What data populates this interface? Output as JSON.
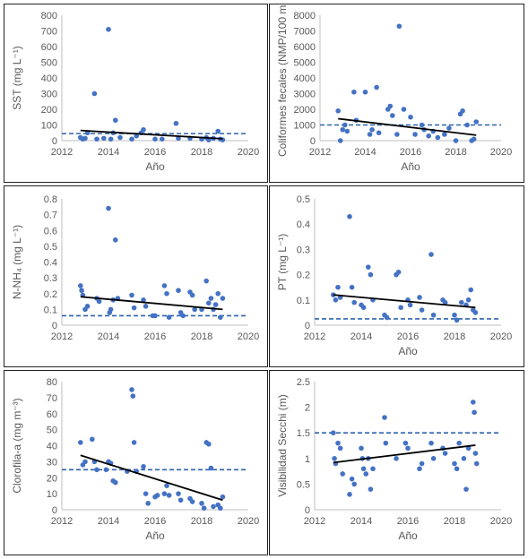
{
  "chart_data": [
    {
      "type": "scatter",
      "title": "",
      "xlabel": "Año",
      "ylabel": "SST (mg L⁻¹)",
      "xlim": [
        2012,
        2020
      ],
      "ylim": [
        0,
        800
      ],
      "xticks": [
        2012,
        2014,
        2016,
        2018,
        2020
      ],
      "yticks": [
        0,
        100,
        200,
        300,
        400,
        500,
        600,
        700,
        800
      ],
      "grid": false,
      "reference_line": 45,
      "trend_line": {
        "x": [
          2012.8,
          2018.9
        ],
        "y": [
          65,
          12
        ]
      },
      "points": [
        [
          2012.8,
          20
        ],
        [
          2012.9,
          10
        ],
        [
          2013.0,
          15
        ],
        [
          2013.1,
          50
        ],
        [
          2013.4,
          300
        ],
        [
          2013.5,
          10
        ],
        [
          2013.8,
          15
        ],
        [
          2014.0,
          710
        ],
        [
          2014.1,
          10
        ],
        [
          2014.2,
          50
        ],
        [
          2014.3,
          130
        ],
        [
          2014.5,
          20
        ],
        [
          2015.0,
          10
        ],
        [
          2015.2,
          30
        ],
        [
          2015.4,
          50
        ],
        [
          2015.5,
          70
        ],
        [
          2016.0,
          10
        ],
        [
          2016.3,
          10
        ],
        [
          2016.9,
          110
        ],
        [
          2017.0,
          15
        ],
        [
          2017.5,
          15
        ],
        [
          2018.0,
          10
        ],
        [
          2018.2,
          20
        ],
        [
          2018.3,
          5
        ],
        [
          2018.5,
          15
        ],
        [
          2018.7,
          60
        ],
        [
          2018.8,
          10
        ],
        [
          2018.9,
          5
        ]
      ]
    },
    {
      "type": "scatter",
      "title": "",
      "xlabel": "Año",
      "ylabel": "Coliformes fecales (NMP/100 ml)",
      "xlim": [
        2012,
        2020
      ],
      "ylim": [
        0,
        8000
      ],
      "xticks": [
        2012,
        2014,
        2016,
        2018,
        2020
      ],
      "yticks": [
        0,
        1000,
        2000,
        3000,
        4000,
        5000,
        6000,
        7000,
        8000
      ],
      "grid": false,
      "reference_line": 1000,
      "trend_line": {
        "x": [
          2012.8,
          2018.9
        ],
        "y": [
          1400,
          350
        ]
      },
      "points": [
        [
          2012.8,
          1900
        ],
        [
          2012.9,
          0
        ],
        [
          2013.0,
          700
        ],
        [
          2013.1,
          1000
        ],
        [
          2013.2,
          600
        ],
        [
          2013.5,
          3100
        ],
        [
          2013.6,
          1300
        ],
        [
          2014.0,
          3100
        ],
        [
          2014.2,
          400
        ],
        [
          2014.3,
          700
        ],
        [
          2014.5,
          3400
        ],
        [
          2014.6,
          500
        ],
        [
          2015.0,
          2000
        ],
        [
          2015.1,
          2200
        ],
        [
          2015.2,
          1600
        ],
        [
          2015.4,
          400
        ],
        [
          2015.5,
          7300
        ],
        [
          2015.7,
          2000
        ],
        [
          2016.0,
          1500
        ],
        [
          2016.2,
          400
        ],
        [
          2016.5,
          1000
        ],
        [
          2016.6,
          700
        ],
        [
          2016.8,
          300
        ],
        [
          2017.0,
          600
        ],
        [
          2017.2,
          200
        ],
        [
          2017.5,
          400
        ],
        [
          2017.7,
          800
        ],
        [
          2018.0,
          0
        ],
        [
          2018.2,
          1700
        ],
        [
          2018.3,
          1900
        ],
        [
          2018.5,
          1000
        ],
        [
          2018.7,
          0
        ],
        [
          2018.8,
          100
        ],
        [
          2018.9,
          1200
        ]
      ]
    },
    {
      "type": "scatter",
      "title": "",
      "xlabel": "",
      "ylabel": "N-NH₄ (mg L⁻¹)",
      "xlim": [
        2012,
        2020
      ],
      "ylim": [
        0,
        0.8
      ],
      "xticks": [
        2012,
        2014,
        2016,
        2018,
        2020
      ],
      "yticks": [
        0,
        0.1,
        0.2,
        0.3,
        0.4,
        0.5,
        0.6,
        0.7,
        0.8
      ],
      "grid": false,
      "reference_line": 0.06,
      "trend_line": {
        "x": [
          2012.8,
          2018.9
        ],
        "y": [
          0.18,
          0.1
        ]
      },
      "points": [
        [
          2012.8,
          0.25
        ],
        [
          2012.85,
          0.22
        ],
        [
          2012.9,
          0.19
        ],
        [
          2013.0,
          0.1
        ],
        [
          2013.1,
          0.12
        ],
        [
          2013.5,
          0.17
        ],
        [
          2013.6,
          0.15
        ],
        [
          2014.0,
          0.74
        ],
        [
          2014.05,
          0.08
        ],
        [
          2014.1,
          0.1
        ],
        [
          2014.2,
          0.16
        ],
        [
          2014.3,
          0.54
        ],
        [
          2014.4,
          0.17
        ],
        [
          2015.0,
          0.19
        ],
        [
          2015.1,
          0.11
        ],
        [
          2015.5,
          0.16
        ],
        [
          2015.6,
          0.12
        ],
        [
          2015.9,
          0.06
        ],
        [
          2016.0,
          0.06
        ],
        [
          2016.4,
          0.25
        ],
        [
          2016.5,
          0.2
        ],
        [
          2016.6,
          0.05
        ],
        [
          2017.0,
          0.22
        ],
        [
          2017.1,
          0.08
        ],
        [
          2017.2,
          0.06
        ],
        [
          2017.5,
          0.21
        ],
        [
          2017.6,
          0.19
        ],
        [
          2017.7,
          0.1
        ],
        [
          2018.0,
          0.1
        ],
        [
          2018.2,
          0.28
        ],
        [
          2018.3,
          0.14
        ],
        [
          2018.4,
          0.17
        ],
        [
          2018.5,
          0.1
        ],
        [
          2018.6,
          0.13
        ],
        [
          2018.7,
          0.2
        ],
        [
          2018.8,
          0.05
        ],
        [
          2018.9,
          0.17
        ]
      ]
    },
    {
      "type": "scatter",
      "title": "",
      "xlabel": "Año",
      "ylabel": "PT (mg L⁻¹)",
      "xlim": [
        2012,
        2020
      ],
      "ylim": [
        0,
        0.5
      ],
      "xticks": [
        2012,
        2014,
        2016,
        2018,
        2020
      ],
      "yticks": [
        0,
        0.1,
        0.2,
        0.3,
        0.4,
        0.5
      ],
      "grid": false,
      "reference_line": 0.025,
      "trend_line": {
        "x": [
          2012.8,
          2018.9
        ],
        "y": [
          0.12,
          0.07
        ]
      },
      "points": [
        [
          2012.8,
          0.12
        ],
        [
          2012.9,
          0.1
        ],
        [
          2013.0,
          0.15
        ],
        [
          2013.1,
          0.11
        ],
        [
          2013.5,
          0.43
        ],
        [
          2013.6,
          0.15
        ],
        [
          2013.7,
          0.09
        ],
        [
          2014.0,
          0.08
        ],
        [
          2014.1,
          0.07
        ],
        [
          2014.3,
          0.23
        ],
        [
          2014.4,
          0.2
        ],
        [
          2014.5,
          0.1
        ],
        [
          2015.0,
          0.04
        ],
        [
          2015.1,
          0.03
        ],
        [
          2015.5,
          0.2
        ],
        [
          2015.6,
          0.21
        ],
        [
          2015.7,
          0.07
        ],
        [
          2016.0,
          0.1
        ],
        [
          2016.1,
          0.08
        ],
        [
          2016.5,
          0.11
        ],
        [
          2016.6,
          0.06
        ],
        [
          2017.0,
          0.28
        ],
        [
          2017.1,
          0.04
        ],
        [
          2017.5,
          0.1
        ],
        [
          2017.6,
          0.09
        ],
        [
          2018.0,
          0.04
        ],
        [
          2018.1,
          0.02
        ],
        [
          2018.3,
          0.09
        ],
        [
          2018.5,
          0.08
        ],
        [
          2018.6,
          0.1
        ],
        [
          2018.7,
          0.14
        ],
        [
          2018.8,
          0.06
        ],
        [
          2018.9,
          0.05
        ]
      ]
    },
    {
      "type": "scatter",
      "title": "",
      "xlabel": "Año",
      "ylabel": "Clorofila-a (mg m⁻³)",
      "xlim": [
        2012,
        2020
      ],
      "ylim": [
        0,
        80
      ],
      "xticks": [
        2012,
        2014,
        2016,
        2018,
        2020
      ],
      "yticks": [
        0,
        10,
        20,
        30,
        40,
        50,
        60,
        70,
        80
      ],
      "grid": false,
      "reference_line": 25,
      "trend_line": {
        "x": [
          2012.8,
          2018.9
        ],
        "y": [
          34,
          6
        ]
      },
      "points": [
        [
          2012.8,
          42
        ],
        [
          2012.9,
          28
        ],
        [
          2013.0,
          30
        ],
        [
          2013.3,
          44
        ],
        [
          2013.4,
          30
        ],
        [
          2013.5,
          25
        ],
        [
          2013.9,
          25
        ],
        [
          2014.0,
          30
        ],
        [
          2014.1,
          29
        ],
        [
          2014.2,
          18
        ],
        [
          2014.3,
          17
        ],
        [
          2014.8,
          24
        ],
        [
          2015.0,
          75
        ],
        [
          2015.05,
          71
        ],
        [
          2015.1,
          42
        ],
        [
          2015.2,
          24
        ],
        [
          2015.5,
          27
        ],
        [
          2015.6,
          10
        ],
        [
          2015.7,
          4
        ],
        [
          2016.0,
          8
        ],
        [
          2016.1,
          9
        ],
        [
          2016.4,
          10
        ],
        [
          2016.5,
          15
        ],
        [
          2016.6,
          9
        ],
        [
          2017.0,
          10
        ],
        [
          2017.1,
          6
        ],
        [
          2017.5,
          7
        ],
        [
          2017.6,
          5
        ],
        [
          2018.0,
          4
        ],
        [
          2018.1,
          1
        ],
        [
          2018.2,
          42
        ],
        [
          2018.3,
          41
        ],
        [
          2018.4,
          26
        ],
        [
          2018.5,
          2
        ],
        [
          2018.7,
          3
        ],
        [
          2018.8,
          1
        ],
        [
          2018.9,
          8
        ]
      ]
    },
    {
      "type": "scatter",
      "title": "",
      "xlabel": "Año",
      "ylabel": "Visibilidad Secchi (m)",
      "xlim": [
        2012,
        2020
      ],
      "ylim": [
        0,
        2.5
      ],
      "xticks": [
        2012,
        2014,
        2016,
        2018,
        2020
      ],
      "yticks": [
        0,
        0.5,
        1,
        1.5,
        2,
        2.5
      ],
      "grid": false,
      "reference_line": 1.5,
      "trend_line": {
        "x": [
          2012.8,
          2018.9
        ],
        "y": [
          0.92,
          1.26
        ]
      },
      "points": [
        [
          2012.8,
          1.5
        ],
        [
          2012.85,
          1.0
        ],
        [
          2012.9,
          0.9
        ],
        [
          2013.0,
          1.3
        ],
        [
          2013.1,
          1.2
        ],
        [
          2013.2,
          0.7
        ],
        [
          2013.5,
          0.3
        ],
        [
          2013.6,
          0.6
        ],
        [
          2013.7,
          0.5
        ],
        [
          2014.0,
          1.2
        ],
        [
          2014.05,
          1.0
        ],
        [
          2014.1,
          0.8
        ],
        [
          2014.2,
          0.7
        ],
        [
          2014.3,
          1.0
        ],
        [
          2014.4,
          0.4
        ],
        [
          2014.5,
          0.8
        ],
        [
          2015.0,
          1.8
        ],
        [
          2015.05,
          1.3
        ],
        [
          2015.5,
          1.0
        ],
        [
          2015.9,
          1.3
        ],
        [
          2016.0,
          1.2
        ],
        [
          2016.5,
          0.8
        ],
        [
          2016.6,
          0.9
        ],
        [
          2017.0,
          1.3
        ],
        [
          2017.1,
          1.0
        ],
        [
          2017.5,
          1.2
        ],
        [
          2017.6,
          1.1
        ],
        [
          2018.0,
          0.9
        ],
        [
          2018.1,
          0.8
        ],
        [
          2018.2,
          1.3
        ],
        [
          2018.4,
          1.0
        ],
        [
          2018.5,
          0.4
        ],
        [
          2018.6,
          1.2
        ],
        [
          2018.8,
          2.1
        ],
        [
          2018.85,
          1.9
        ],
        [
          2018.9,
          1.1
        ],
        [
          2018.95,
          0.9
        ]
      ]
    }
  ],
  "colors": {
    "points": "#4472c4",
    "trend": "#000000",
    "reference": "#2e63ac",
    "axis": "#bfbfbf",
    "text": "#595959"
  }
}
